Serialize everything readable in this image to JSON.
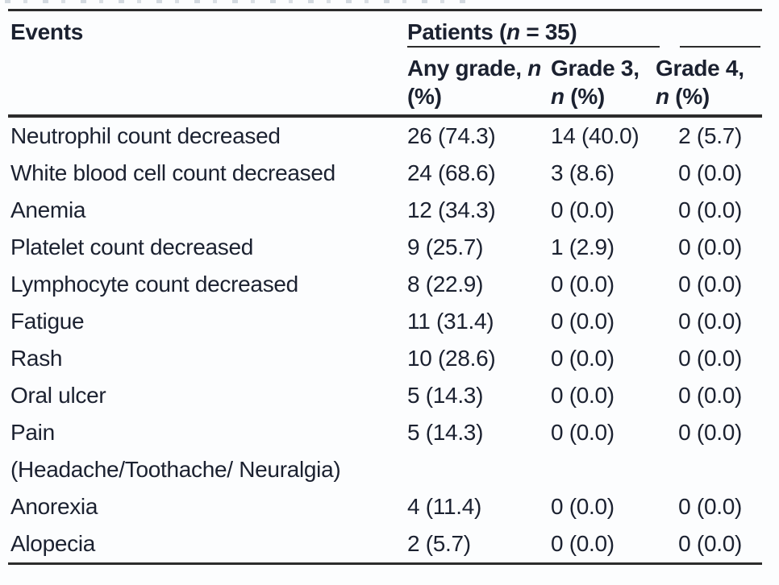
{
  "table": {
    "col1_header": "Events",
    "spanner": {
      "prefix": "Patients (",
      "n": "n",
      "suffix": " = 35)"
    },
    "columns": [
      {
        "line1": "Any grade,",
        "line2_prefix": "",
        "line2_n": "n",
        "line2_suffix": " (%)"
      },
      {
        "line1": "Grade",
        "line2_prefix": "3, ",
        "line2_n": "n",
        "line2_suffix": " (%)"
      },
      {
        "line1": "Grade",
        "line2_prefix": "4, ",
        "line2_n": "n",
        "line2_suffix": " (%)"
      }
    ],
    "rows": [
      {
        "event": "Neutrophil count decreased",
        "any_grade": "26 (74.3)",
        "grade3": "14 (40.0)",
        "grade4": "2 (5.7)"
      },
      {
        "event": "White blood cell count decreased",
        "any_grade": "24 (68.6)",
        "grade3": "3 (8.6)",
        "grade4": "0 (0.0)"
      },
      {
        "event": "Anemia",
        "any_grade": "12 (34.3)",
        "grade3": "0 (0.0)",
        "grade4": "0 (0.0)"
      },
      {
        "event": "Platelet count decreased",
        "any_grade": "9 (25.7)",
        "grade3": "1 (2.9)",
        "grade4": "0 (0.0)"
      },
      {
        "event": "Lymphocyte count decreased",
        "any_grade": "8 (22.9)",
        "grade3": "0 (0.0)",
        "grade4": "0 (0.0)"
      },
      {
        "event": "Fatigue",
        "any_grade": "11 (31.4)",
        "grade3": "0 (0.0)",
        "grade4": "0 (0.0)"
      },
      {
        "event": "Rash",
        "any_grade": "10 (28.6)",
        "grade3": "0 (0.0)",
        "grade4": "0 (0.0)"
      },
      {
        "event": "Oral ulcer",
        "any_grade": "5 (14.3)",
        "grade3": "0 (0.0)",
        "grade4": "0 (0.0)"
      },
      {
        "event": "Pain",
        "event_line2": "(Headache/Toothache/ Neuralgia)",
        "any_grade": "5 (14.3)",
        "grade3": "0 (0.0)",
        "grade4": "0 (0.0)"
      },
      {
        "event": "Anorexia",
        "any_grade": "4 (11.4)",
        "grade3": "0 (0.0)",
        "grade4": "0 (0.0)"
      },
      {
        "event": "Alopecia",
        "any_grade": "2 (5.7)",
        "grade3": "0 (0.0)",
        "grade4": "0 (0.0)"
      }
    ]
  },
  "colors": {
    "text": "#1b2130",
    "rule": "#2c2c2c",
    "background": "#fcfdfe"
  }
}
